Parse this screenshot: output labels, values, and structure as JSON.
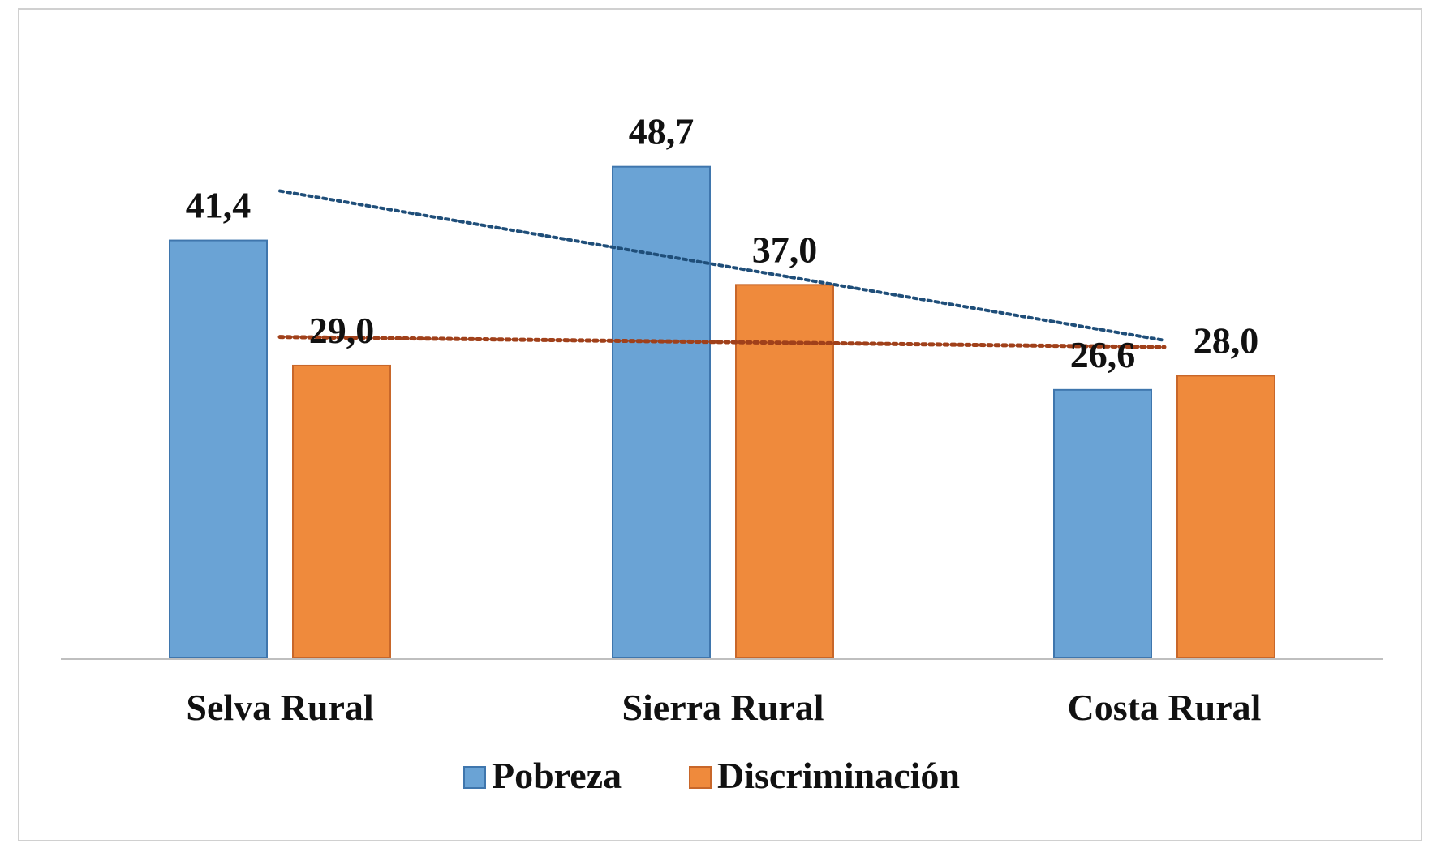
{
  "chart_data": {
    "type": "bar",
    "title": "",
    "xlabel": "",
    "ylabel": "",
    "categories": [
      "Selva Rural",
      "Sierra Rural",
      "Costa Rural"
    ],
    "series": [
      {
        "name": "Pobreza",
        "values": [
          41.4,
          48.7,
          26.6
        ],
        "labels": [
          "41,4",
          "48,7",
          "26,6"
        ],
        "color": "#6aa3d5",
        "edge_color": "#3f76ad",
        "trendline": {
          "type": "linear",
          "style": "dotted",
          "color": "#1f4e79"
        }
      },
      {
        "name": "Discriminación",
        "values": [
          29.0,
          37.0,
          28.0
        ],
        "labels": [
          "29,0",
          "37,0",
          "28,0"
        ],
        "color": "#ef8a3c",
        "edge_color": "#c8672a",
        "trendline": {
          "type": "linear",
          "style": "dotted",
          "color": "#a0401a"
        }
      }
    ],
    "ylim": [
      0,
      55
    ],
    "grid": false,
    "legend": "bottom-center"
  }
}
